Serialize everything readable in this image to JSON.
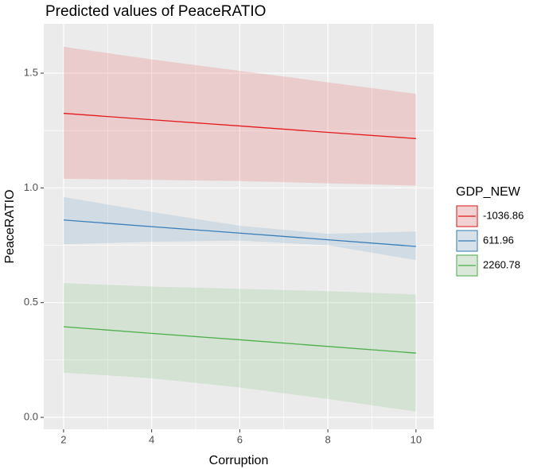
{
  "chart_data": {
    "type": "line",
    "title": "Predicted values of PeaceRATIO",
    "x_label": "Corruption",
    "y_label": "PeaceRATIO",
    "legend_title": "GDP_NEW",
    "x": [
      2,
      4,
      6,
      8,
      10
    ],
    "series": [
      {
        "name": "-1036.86",
        "color": "#e41a1c",
        "values": [
          1.325,
          1.297,
          1.27,
          1.242,
          1.215
        ],
        "lower": [
          1.04,
          1.035,
          1.03,
          1.02,
          1.01
        ],
        "upper": [
          1.615,
          1.56,
          1.51,
          1.46,
          1.41
        ]
      },
      {
        "name": "611.96",
        "color": "#377eb8",
        "values": [
          0.86,
          0.831,
          0.803,
          0.774,
          0.745
        ],
        "lower": [
          0.755,
          0.765,
          0.77,
          0.75,
          0.685
        ],
        "upper": [
          0.96,
          0.895,
          0.835,
          0.8,
          0.81
        ]
      },
      {
        "name": "2260.78",
        "color": "#4daf4a",
        "values": [
          0.395,
          0.366,
          0.338,
          0.309,
          0.28
        ],
        "lower": [
          0.195,
          0.17,
          0.13,
          0.08,
          0.025
        ],
        "upper": [
          0.585,
          0.57,
          0.56,
          0.55,
          0.535
        ]
      }
    ],
    "xlim": [
      1.55,
      10.4
    ],
    "ylim": [
      -0.052,
      1.715
    ],
    "xticks": [
      2,
      4,
      6,
      8,
      10
    ],
    "yticks": [
      {
        "value": 0,
        "label": "0.0"
      },
      0.5,
      {
        "value": 1,
        "label": "1.0"
      },
      1.5
    ],
    "xminor": [
      3,
      5,
      7,
      9
    ],
    "yminor": [
      0.25,
      0.75,
      1.25
    ],
    "grid": true,
    "legend": "right"
  }
}
